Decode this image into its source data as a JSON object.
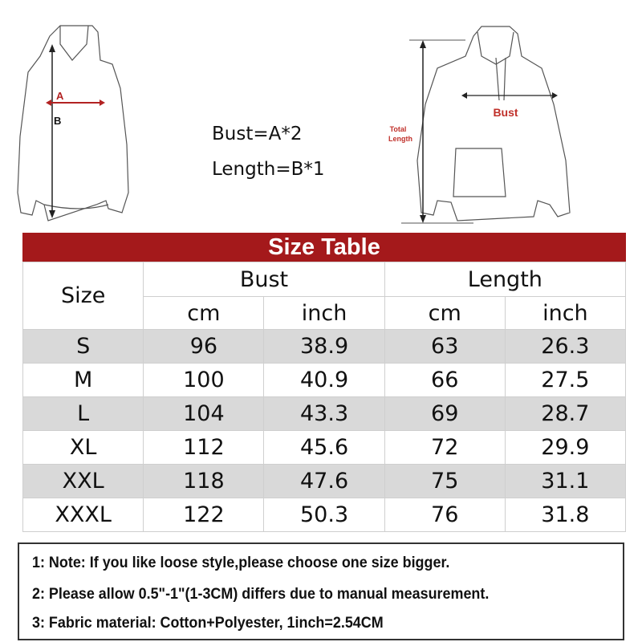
{
  "diagram_left": {
    "label_a": "A",
    "label_b": "B"
  },
  "formulas": {
    "bust": "Bust=A*2",
    "length": "Length=B*1"
  },
  "diagram_right": {
    "bust_label": "Bust",
    "total_length_line1": "Total",
    "total_length_line2": "Length"
  },
  "colors": {
    "accent_red": "#a4191b",
    "row_gray": "#d9d9d9"
  },
  "table": {
    "title": "Size Table",
    "size_header": "Size",
    "bust_header": "Bust",
    "length_header": "Length",
    "unit_headers": [
      "cm",
      "inch",
      "cm",
      "inch"
    ],
    "rows": [
      {
        "size": "S",
        "bust_cm": "96",
        "bust_inch": "38.9",
        "length_cm": "63",
        "length_inch": "26.3"
      },
      {
        "size": "M",
        "bust_cm": "100",
        "bust_inch": "40.9",
        "length_cm": "66",
        "length_inch": "27.5"
      },
      {
        "size": "L",
        "bust_cm": "104",
        "bust_inch": "43.3",
        "length_cm": "69",
        "length_inch": "28.7"
      },
      {
        "size": "XL",
        "bust_cm": "112",
        "bust_inch": "45.6",
        "length_cm": "72",
        "length_inch": "29.9"
      },
      {
        "size": "XXL",
        "bust_cm": "118",
        "bust_inch": "47.6",
        "length_cm": "75",
        "length_inch": "31.1"
      },
      {
        "size": "XXXL",
        "bust_cm": "122",
        "bust_inch": "50.3",
        "length_cm": "76",
        "length_inch": "31.8"
      }
    ]
  },
  "notes": [
    "1: Note: If you like loose style,please choose one size bigger.",
    "2: Please allow 0.5\"-1\"(1-3CM) differs due to manual measurement.",
    "3: Fabric material: Cotton+Polyester,     1inch=2.54CM"
  ]
}
